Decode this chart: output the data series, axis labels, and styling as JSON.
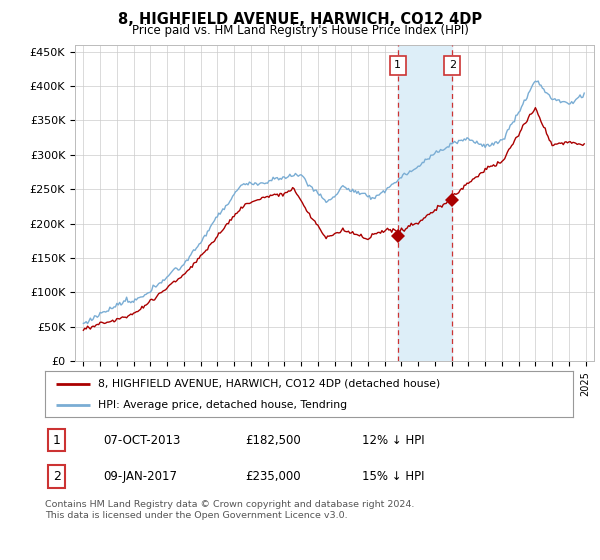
{
  "title": "8, HIGHFIELD AVENUE, HARWICH, CO12 4DP",
  "subtitle": "Price paid vs. HM Land Registry's House Price Index (HPI)",
  "ylabel_ticks": [
    "£0",
    "£50K",
    "£100K",
    "£150K",
    "£200K",
    "£250K",
    "£300K",
    "£350K",
    "£400K",
    "£450K"
  ],
  "ytick_values": [
    0,
    50000,
    100000,
    150000,
    200000,
    250000,
    300000,
    350000,
    400000,
    450000
  ],
  "ylim": [
    0,
    460000
  ],
  "xlim_start": 1994.5,
  "xlim_end": 2025.5,
  "marker1_x": 2013.77,
  "marker1_y": 182500,
  "marker2_x": 2017.03,
  "marker2_y": 235000,
  "shade_x1": 2013.77,
  "shade_x2": 2017.03,
  "red_line_color": "#aa0000",
  "blue_line_color": "#7aadd4",
  "shade_color": "#ddeef8",
  "dashed_color": "#cc3333",
  "legend_label1": "8, HIGHFIELD AVENUE, HARWICH, CO12 4DP (detached house)",
  "legend_label2": "HPI: Average price, detached house, Tendring",
  "table_row1": [
    "1",
    "07-OCT-2013",
    "£182,500",
    "12% ↓ HPI"
  ],
  "table_row2": [
    "2",
    "09-JAN-2017",
    "£235,000",
    "15% ↓ HPI"
  ],
  "footnote": "Contains HM Land Registry data © Crown copyright and database right 2024.\nThis data is licensed under the Open Government Licence v3.0.",
  "background_color": "#ffffff",
  "grid_color": "#cccccc"
}
